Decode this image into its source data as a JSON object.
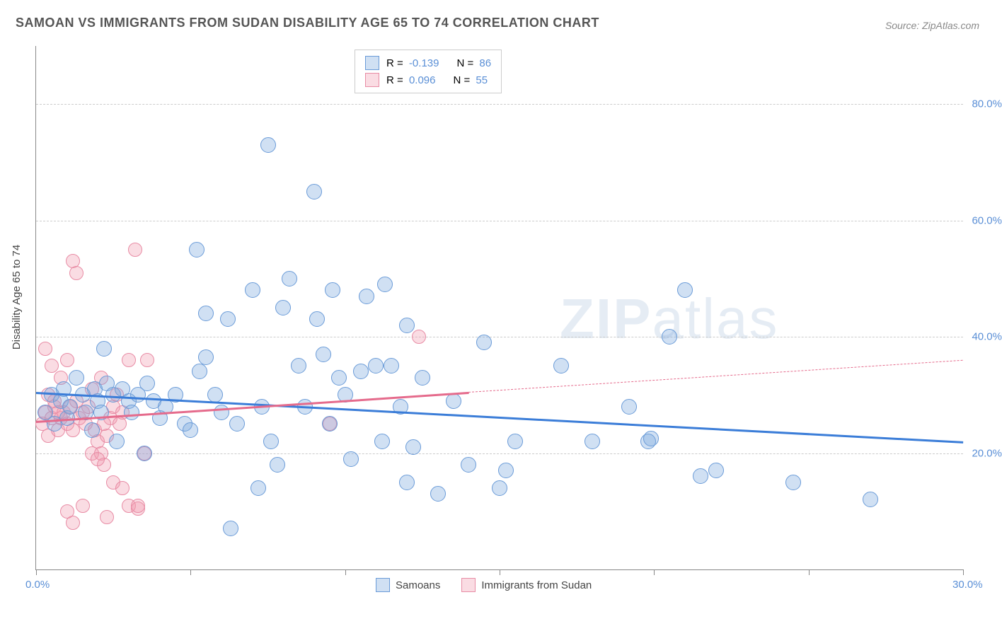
{
  "title": "SAMOAN VS IMMIGRANTS FROM SUDAN DISABILITY AGE 65 TO 74 CORRELATION CHART",
  "source": "Source: ZipAtlas.com",
  "y_axis_title": "Disability Age 65 to 74",
  "watermark": "ZIPatlas",
  "chart": {
    "type": "scatter",
    "xlim": [
      0,
      30
    ],
    "ylim": [
      0,
      90
    ],
    "x_ticks": [
      0,
      5,
      10,
      15,
      20,
      25,
      30
    ],
    "x_labels_shown": {
      "0": "0.0%",
      "30": "30.0%"
    },
    "y_grid": [
      20,
      40,
      60,
      80
    ],
    "y_labels": {
      "20": "20.0%",
      "40": "40.0%",
      "60": "60.0%",
      "80": "80.0%"
    },
    "background_color": "#ffffff",
    "grid_color": "#cccccc",
    "axis_color": "#888888",
    "label_color": "#5a8fd6",
    "marker_radius_blue": 10,
    "marker_radius_pink": 9
  },
  "legend_top": {
    "rows": [
      {
        "swatch": "blue",
        "r": "-0.139",
        "n": "86"
      },
      {
        "swatch": "pink",
        "r": "0.096",
        "n": "55"
      }
    ]
  },
  "legend_bottom": [
    {
      "swatch": "blue",
      "label": "Samoans"
    },
    {
      "swatch": "pink",
      "label": "Immigrants from Sudan"
    }
  ],
  "series": {
    "samoans": {
      "color_fill": "rgba(120,165,220,0.35)",
      "color_stroke": "#6a9bd8",
      "trend": {
        "x1": 0,
        "y1": 30.5,
        "x2": 30,
        "y2": 22,
        "color": "#3b7dd8",
        "width": 2.5,
        "dash": false
      },
      "points": [
        [
          0.3,
          27
        ],
        [
          0.5,
          30
        ],
        [
          0.6,
          25
        ],
        [
          0.8,
          29
        ],
        [
          0.9,
          31
        ],
        [
          1.0,
          26
        ],
        [
          1.1,
          28
        ],
        [
          1.3,
          33
        ],
        [
          1.5,
          30
        ],
        [
          1.6,
          27
        ],
        [
          1.8,
          24
        ],
        [
          1.9,
          31
        ],
        [
          2.0,
          29
        ],
        [
          2.1,
          27
        ],
        [
          2.2,
          38
        ],
        [
          2.3,
          32
        ],
        [
          2.5,
          30
        ],
        [
          2.6,
          22
        ],
        [
          2.8,
          31
        ],
        [
          3.0,
          29
        ],
        [
          3.1,
          27
        ],
        [
          3.3,
          30
        ],
        [
          3.5,
          20
        ],
        [
          3.6,
          32
        ],
        [
          3.8,
          29
        ],
        [
          4.0,
          26
        ],
        [
          4.2,
          28
        ],
        [
          4.5,
          30
        ],
        [
          4.8,
          25
        ],
        [
          5.0,
          24
        ],
        [
          5.2,
          55
        ],
        [
          5.3,
          34
        ],
        [
          5.5,
          44
        ],
        [
          5.8,
          30
        ],
        [
          6.0,
          27
        ],
        [
          6.2,
          43
        ],
        [
          6.3,
          7
        ],
        [
          6.5,
          25
        ],
        [
          7.0,
          48
        ],
        [
          7.2,
          14
        ],
        [
          7.3,
          28
        ],
        [
          7.5,
          73
        ],
        [
          7.6,
          22
        ],
        [
          7.8,
          18
        ],
        [
          8.0,
          45
        ],
        [
          8.2,
          50
        ],
        [
          8.5,
          35
        ],
        [
          8.7,
          28
        ],
        [
          9.0,
          65
        ],
        [
          9.1,
          43
        ],
        [
          9.3,
          37
        ],
        [
          9.5,
          25
        ],
        [
          9.6,
          48
        ],
        [
          9.8,
          33
        ],
        [
          10.0,
          30
        ],
        [
          10.2,
          19
        ],
        [
          10.5,
          34
        ],
        [
          10.7,
          47
        ],
        [
          11.0,
          35
        ],
        [
          11.2,
          22
        ],
        [
          11.3,
          49
        ],
        [
          11.5,
          35
        ],
        [
          11.8,
          28
        ],
        [
          12.0,
          15
        ],
        [
          12.2,
          21
        ],
        [
          12.5,
          33
        ],
        [
          13.0,
          13
        ],
        [
          13.5,
          29
        ],
        [
          14.0,
          18
        ],
        [
          14.5,
          39
        ],
        [
          15.0,
          14
        ],
        [
          15.2,
          17
        ],
        [
          15.5,
          22
        ],
        [
          17.0,
          35
        ],
        [
          18.0,
          22
        ],
        [
          19.2,
          28
        ],
        [
          19.8,
          22
        ],
        [
          19.9,
          22.5
        ],
        [
          20.5,
          40
        ],
        [
          21.0,
          48
        ],
        [
          21.5,
          16
        ],
        [
          22.0,
          17
        ],
        [
          24.5,
          15
        ],
        [
          27.0,
          12
        ],
        [
          12.0,
          42
        ],
        [
          5.5,
          36.5
        ]
      ]
    },
    "sudan": {
      "color_fill": "rgba(240,155,175,0.35)",
      "color_stroke": "#e88ca5",
      "trend_solid": {
        "x1": 0,
        "y1": 25.5,
        "x2": 14,
        "y2": 30.5,
        "color": "#e56b8c",
        "width": 2.5
      },
      "trend_dash": {
        "x1": 14,
        "y1": 30.5,
        "x2": 30,
        "y2": 36,
        "color": "#e56b8c",
        "width": 1
      },
      "points": [
        [
          0.2,
          25
        ],
        [
          0.3,
          27
        ],
        [
          0.4,
          23
        ],
        [
          0.5,
          26
        ],
        [
          0.6,
          28
        ],
        [
          0.7,
          24
        ],
        [
          0.8,
          26
        ],
        [
          0.9,
          27
        ],
        [
          1.0,
          25
        ],
        [
          1.1,
          28
        ],
        [
          1.2,
          24
        ],
        [
          1.3,
          29
        ],
        [
          1.4,
          26
        ],
        [
          1.5,
          27
        ],
        [
          1.6,
          25
        ],
        [
          1.7,
          28
        ],
        [
          1.8,
          20
        ],
        [
          1.9,
          24
        ],
        [
          2.0,
          22
        ],
        [
          2.1,
          20
        ],
        [
          2.2,
          18
        ],
        [
          2.3,
          23
        ],
        [
          2.4,
          26
        ],
        [
          2.5,
          28
        ],
        [
          2.6,
          30
        ],
        [
          2.7,
          25
        ],
        [
          2.8,
          27
        ],
        [
          3.0,
          36
        ],
        [
          0.3,
          38
        ],
        [
          0.5,
          35
        ],
        [
          0.8,
          33
        ],
        [
          1.0,
          36
        ],
        [
          1.2,
          53
        ],
        [
          1.3,
          51
        ],
        [
          1.0,
          10
        ],
        [
          1.2,
          8
        ],
        [
          1.5,
          11
        ],
        [
          2.0,
          19
        ],
        [
          2.3,
          9
        ],
        [
          2.5,
          15
        ],
        [
          2.8,
          14
        ],
        [
          3.0,
          11
        ],
        [
          3.3,
          10.5
        ],
        [
          3.3,
          11
        ],
        [
          3.5,
          20
        ],
        [
          3.6,
          36
        ],
        [
          3.2,
          55
        ],
        [
          0.4,
          30
        ],
        [
          0.6,
          29
        ],
        [
          0.7,
          27
        ],
        [
          2.2,
          25
        ],
        [
          9.5,
          25
        ],
        [
          12.4,
          40
        ],
        [
          1.8,
          31
        ],
        [
          2.1,
          33
        ]
      ]
    }
  }
}
